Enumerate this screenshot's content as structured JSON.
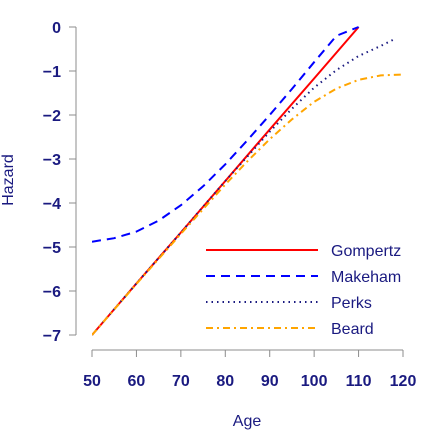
{
  "chart_data": {
    "type": "line",
    "title": "",
    "xlabel": "Age",
    "ylabel": "Hazard",
    "xlim": [
      50,
      120
    ],
    "ylim": [
      -7,
      0
    ],
    "xticks": [
      "50",
      "60",
      "70",
      "80",
      "90",
      "100",
      "110",
      "120"
    ],
    "yticks": [
      "−7",
      "−6",
      "−5",
      "−4",
      "−3",
      "−2",
      "−1",
      "0"
    ],
    "grid": false,
    "legend_position": "bottom-right",
    "series": [
      {
        "name": "Gompertz",
        "color": "#ff0000",
        "dash": "solid",
        "x": [
          50,
          60,
          70,
          80,
          90,
          100,
          110
        ],
        "y": [
          -7.0,
          -5.83,
          -4.67,
          -3.5,
          -2.33,
          -1.17,
          0.0
        ]
      },
      {
        "name": "Makeham",
        "color": "#0000ff",
        "dash": "dashed",
        "x": [
          50,
          55,
          60,
          65,
          70,
          75,
          80,
          85,
          90,
          95,
          100,
          105,
          110
        ],
        "y": [
          -4.88,
          -4.8,
          -4.65,
          -4.4,
          -4.05,
          -3.62,
          -3.12,
          -2.57,
          -2.0,
          -1.41,
          -0.8,
          -0.2,
          0.0
        ]
      },
      {
        "name": "Perks",
        "color": "#1a1a80",
        "dash": "dotted",
        "x": [
          50,
          60,
          70,
          80,
          90,
          95,
          100,
          105,
          110,
          115,
          118
        ],
        "y": [
          -7.0,
          -5.83,
          -4.67,
          -3.5,
          -2.38,
          -1.86,
          -1.38,
          -0.98,
          -0.66,
          -0.43,
          -0.28
        ]
      },
      {
        "name": "Beard",
        "color": "#ffa500",
        "dash": "dashdot",
        "x": [
          50,
          60,
          70,
          80,
          85,
          90,
          95,
          100,
          105,
          110,
          115,
          120
        ],
        "y": [
          -7.0,
          -5.84,
          -4.7,
          -3.58,
          -3.05,
          -2.55,
          -2.1,
          -1.7,
          -1.4,
          -1.2,
          -1.1,
          -1.08
        ]
      }
    ]
  }
}
